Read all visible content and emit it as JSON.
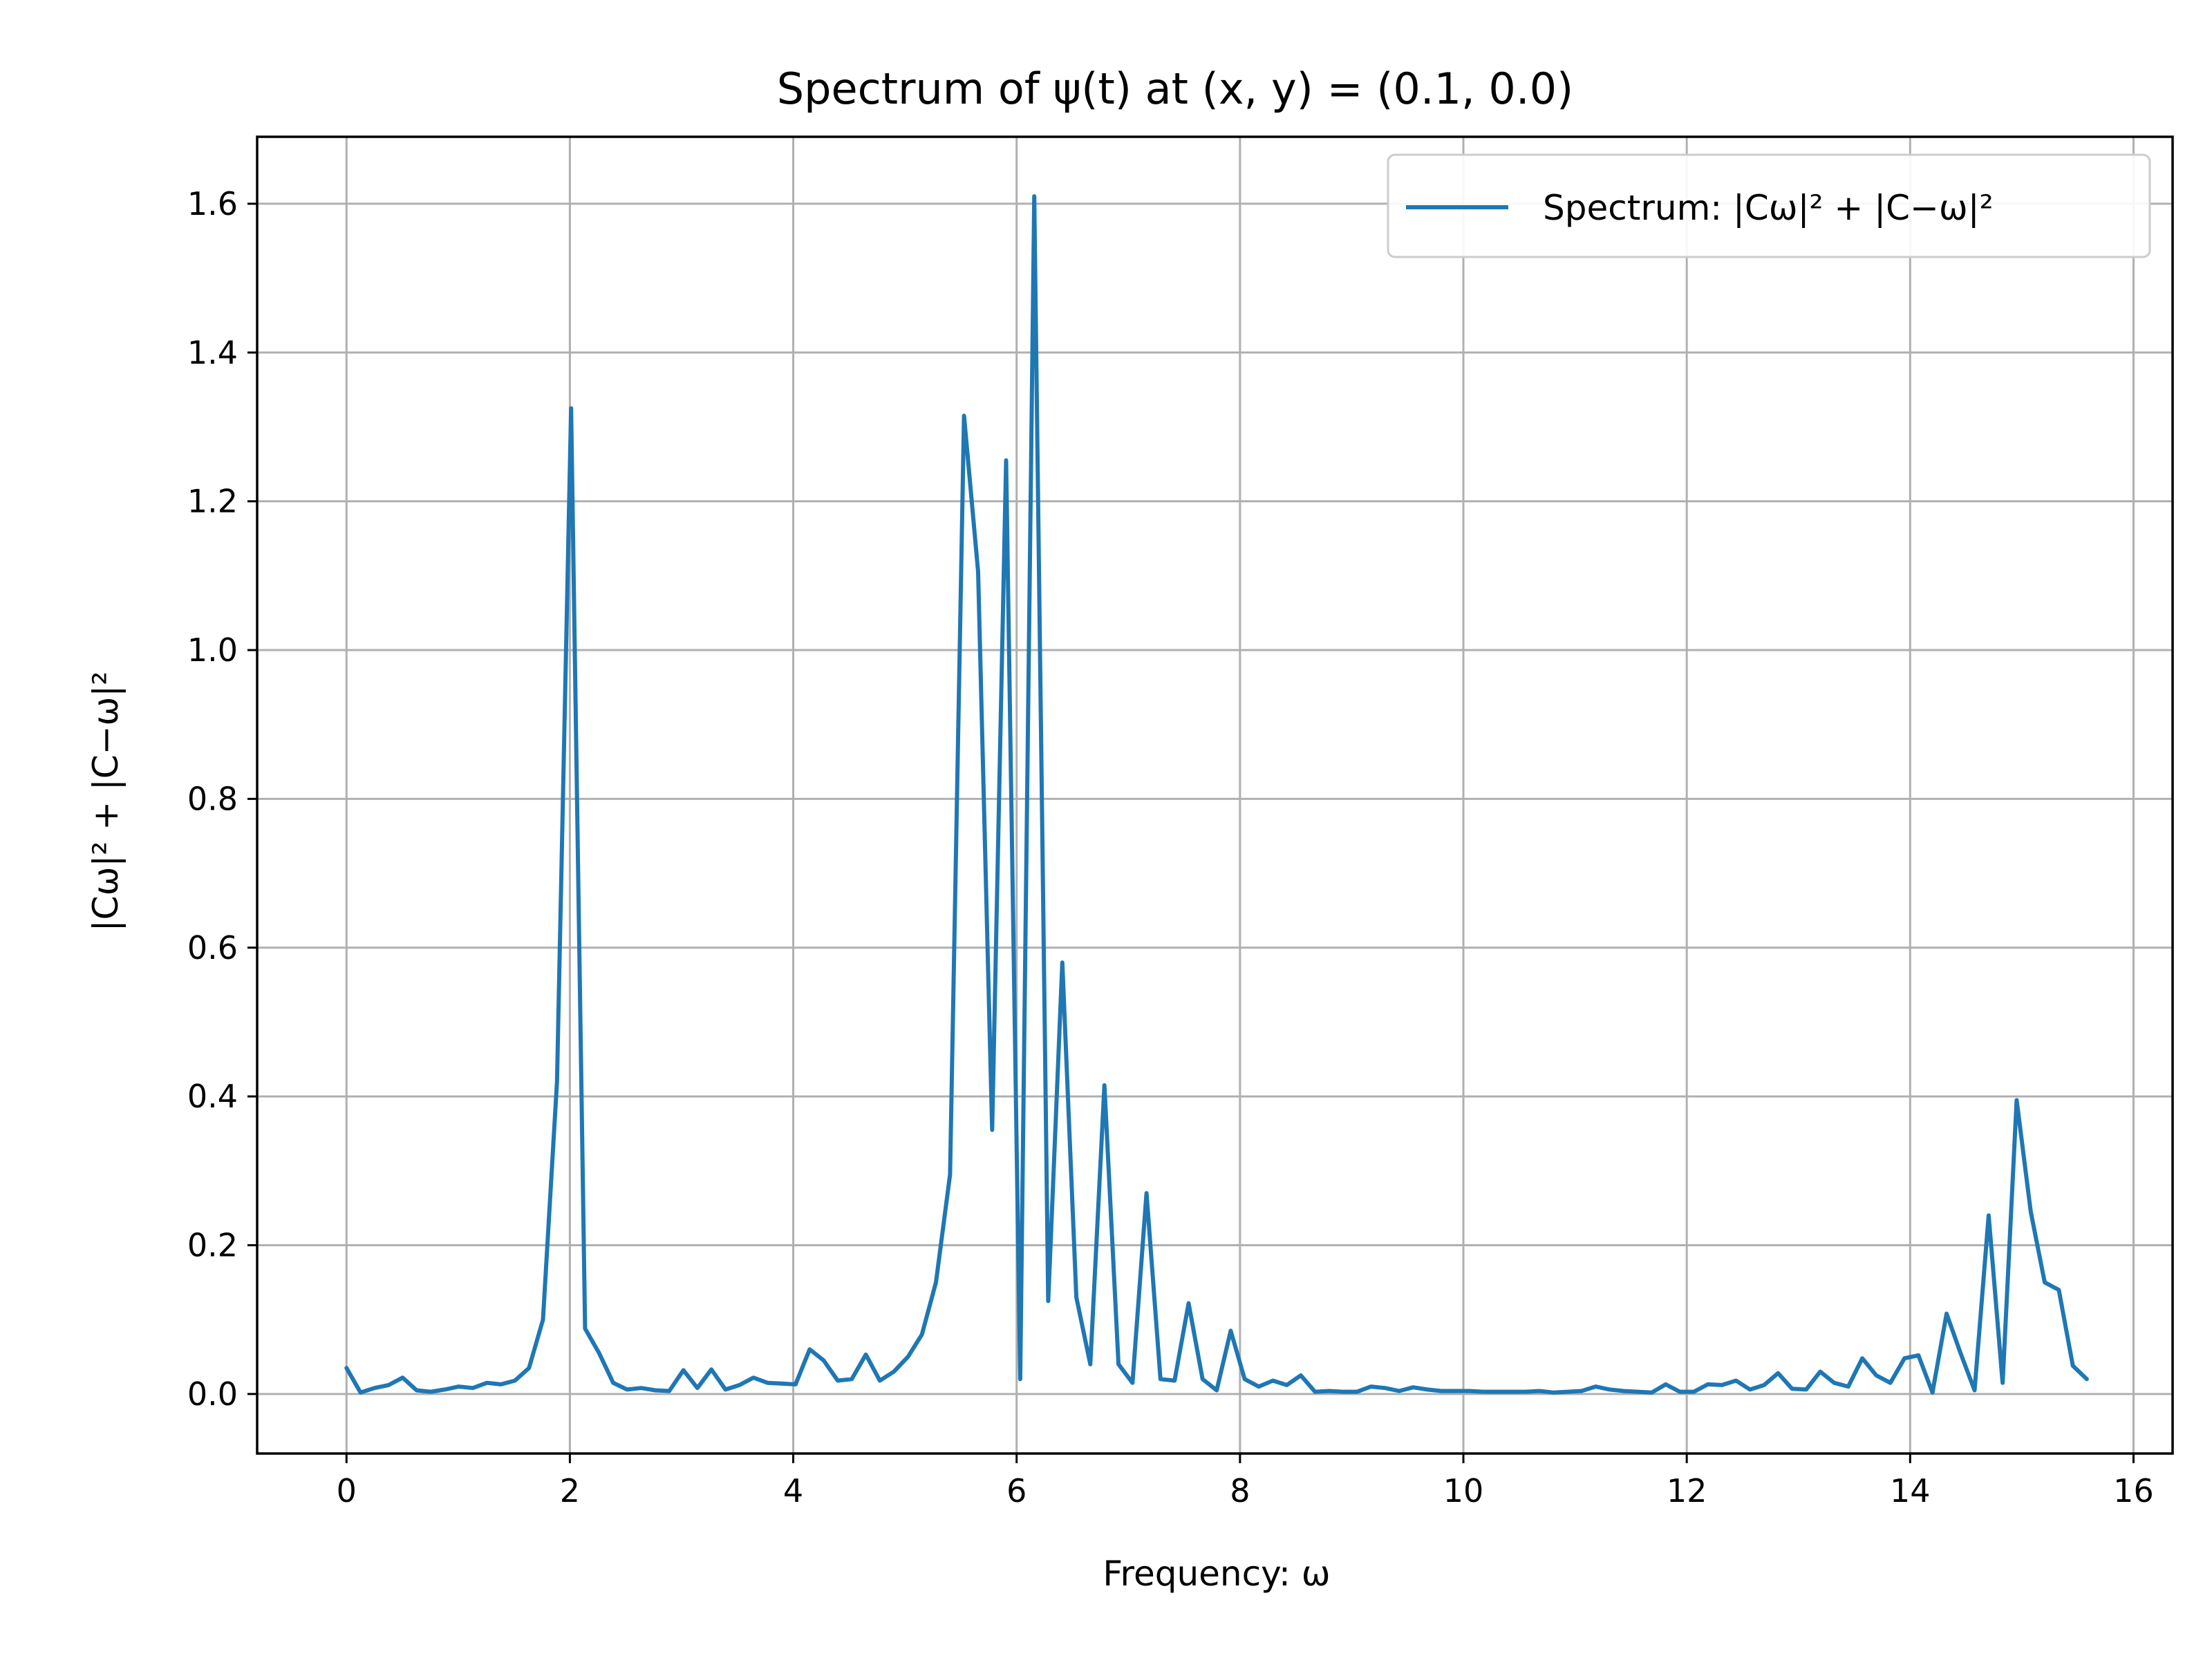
{
  "chart_data": {
    "type": "line",
    "title": "Spectrum of ψ(t) at (x, y) = (0.1, 0.0)",
    "xlabel": "Frequency: ω",
    "ylabel": "|Cω|² + |C−ω|²",
    "xlim": [
      -0.8,
      16.35
    ],
    "ylim": [
      -0.08,
      1.69
    ],
    "xticks": [
      0,
      2,
      4,
      6,
      8,
      10,
      12,
      14,
      16
    ],
    "yticks": [
      0.0,
      0.2,
      0.4,
      0.6,
      0.8,
      1.0,
      1.2,
      1.4,
      1.6
    ],
    "xtick_labels": [
      "0",
      "2",
      "4",
      "6",
      "8",
      "10",
      "12",
      "14",
      "16"
    ],
    "ytick_labels": [
      "0.0",
      "0.2",
      "0.4",
      "0.6",
      "0.8",
      "1.0",
      "1.2",
      "1.4",
      "1.6"
    ],
    "grid": true,
    "legend_position": "top-right",
    "series": [
      {
        "name": "Spectrum: |Cω|² + |C−ω|²",
        "color": "#1f77b4",
        "x": [
          0.0,
          0.126,
          0.251,
          0.377,
          0.503,
          0.628,
          0.754,
          0.88,
          1.005,
          1.131,
          1.257,
          1.382,
          1.508,
          1.634,
          1.759,
          1.885,
          2.011,
          2.136,
          2.262,
          2.388,
          2.513,
          2.639,
          2.765,
          2.89,
          3.016,
          3.142,
          3.267,
          3.393,
          3.519,
          3.644,
          3.77,
          3.896,
          4.021,
          4.147,
          4.273,
          4.398,
          4.524,
          4.65,
          4.775,
          4.901,
          5.027,
          5.152,
          5.278,
          5.404,
          5.529,
          5.655,
          5.781,
          5.906,
          6.032,
          6.158,
          6.283,
          6.409,
          6.535,
          6.66,
          6.786,
          6.912,
          7.037,
          7.163,
          7.288,
          7.414,
          7.54,
          7.665,
          7.791,
          7.917,
          8.042,
          8.168,
          8.294,
          8.419,
          8.545,
          8.671,
          8.796,
          8.922,
          9.048,
          9.173,
          9.299,
          9.425,
          9.55,
          9.676,
          9.802,
          9.927,
          10.053,
          10.179,
          10.304,
          10.43,
          10.556,
          10.681,
          10.807,
          10.933,
          11.058,
          11.184,
          11.31,
          11.435,
          11.561,
          11.687,
          11.812,
          11.938,
          12.064,
          12.189,
          12.315,
          12.441,
          12.566,
          12.692,
          12.818,
          12.943,
          13.069,
          13.195,
          13.32,
          13.446,
          13.572,
          13.697,
          13.823,
          13.949,
          14.074,
          14.2,
          14.326,
          14.451,
          14.577,
          14.703,
          14.828,
          14.954,
          15.08,
          15.205,
          15.331,
          15.457,
          15.582
        ],
        "y": [
          0.035,
          0.002,
          0.008,
          0.012,
          0.022,
          0.005,
          0.003,
          0.006,
          0.01,
          0.008,
          0.015,
          0.013,
          0.018,
          0.035,
          0.1,
          0.42,
          1.325,
          0.088,
          0.055,
          0.015,
          0.006,
          0.008,
          0.005,
          0.004,
          0.032,
          0.008,
          0.033,
          0.006,
          0.012,
          0.022,
          0.015,
          0.014,
          0.013,
          0.06,
          0.045,
          0.018,
          0.02,
          0.053,
          0.018,
          0.03,
          0.05,
          0.08,
          0.15,
          0.295,
          1.315,
          1.105,
          0.355,
          1.255,
          0.02,
          1.61,
          0.125,
          0.58,
          0.13,
          0.04,
          0.415,
          0.04,
          0.015,
          0.27,
          0.02,
          0.018,
          0.122,
          0.02,
          0.005,
          0.085,
          0.02,
          0.01,
          0.018,
          0.012,
          0.025,
          0.003,
          0.004,
          0.003,
          0.003,
          0.01,
          0.008,
          0.004,
          0.009,
          0.006,
          0.004,
          0.004,
          0.004,
          0.003,
          0.003,
          0.003,
          0.003,
          0.004,
          0.002,
          0.003,
          0.004,
          0.01,
          0.006,
          0.004,
          0.003,
          0.002,
          0.013,
          0.003,
          0.003,
          0.013,
          0.012,
          0.018,
          0.006,
          0.012,
          0.028,
          0.007,
          0.006,
          0.03,
          0.015,
          0.01,
          0.048,
          0.025,
          0.015,
          0.048,
          0.052,
          0.002,
          0.108,
          0.055,
          0.005,
          0.24,
          0.015,
          0.395,
          0.245,
          0.15,
          0.14,
          0.038,
          0.02
        ]
      }
    ]
  }
}
